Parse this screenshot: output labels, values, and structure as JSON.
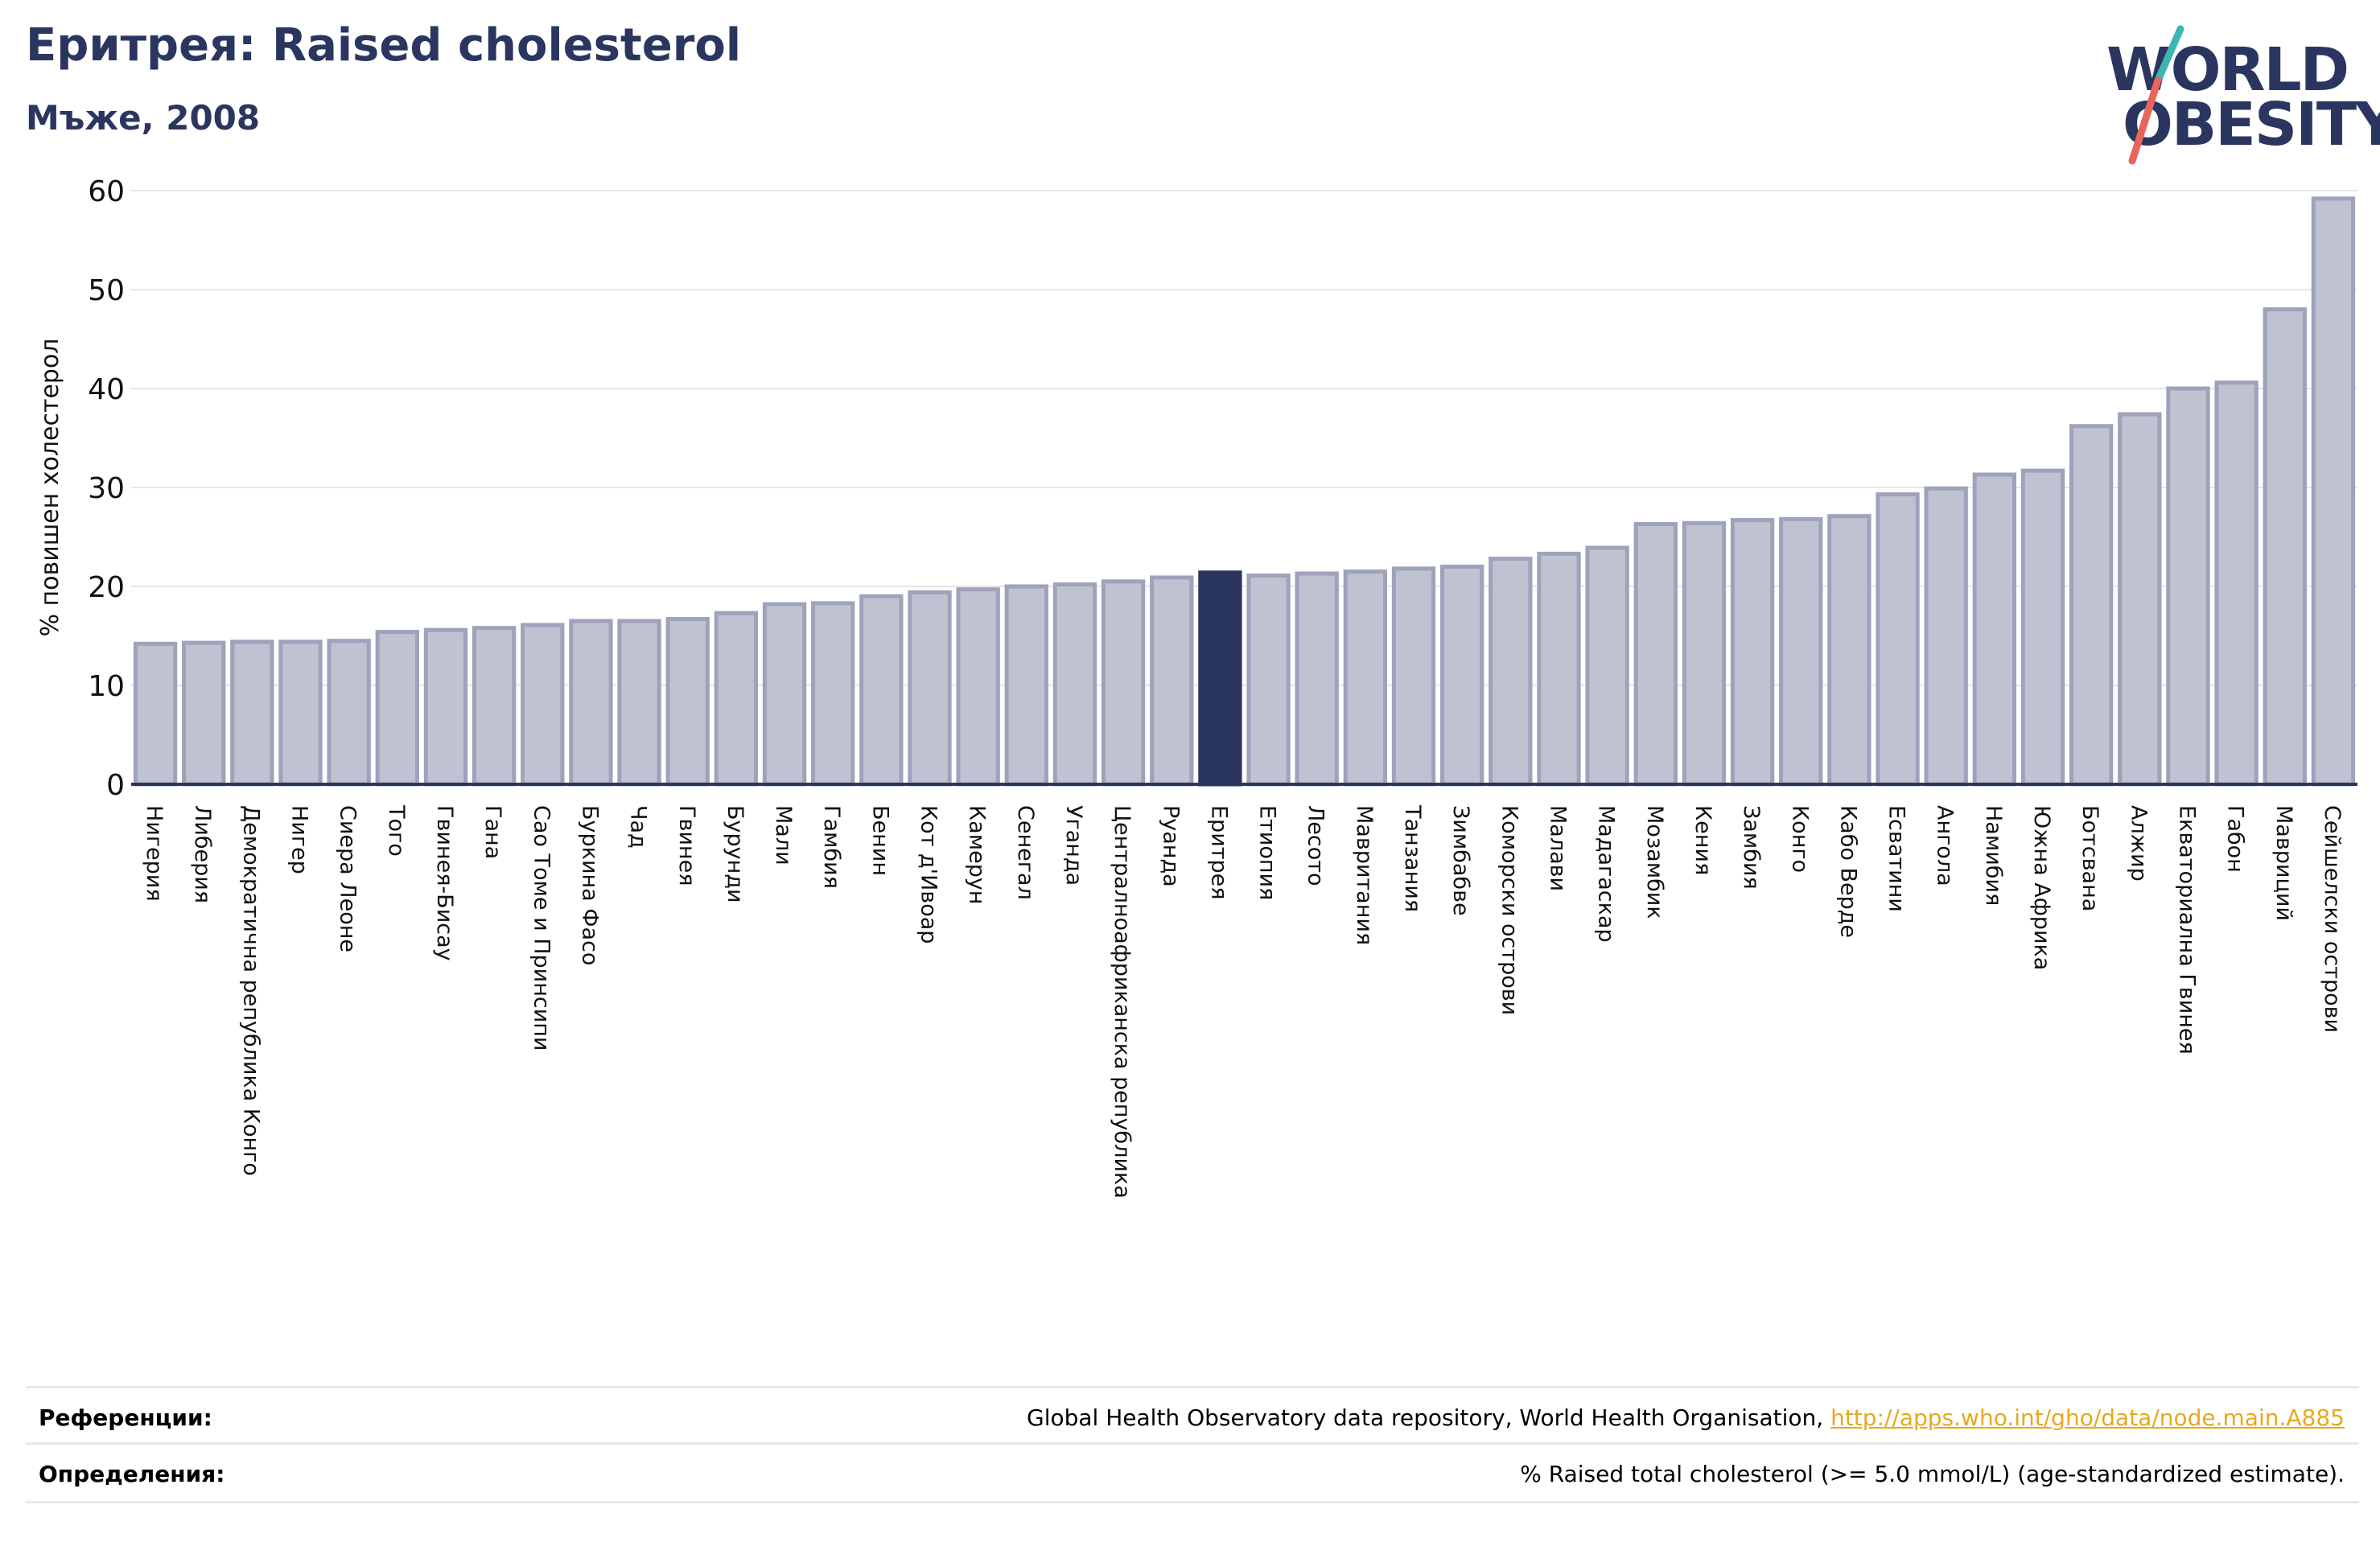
{
  "header": {
    "title": "Еритрея: Raised cholesterol",
    "subtitle": "Мъже, 2008"
  },
  "logo": {
    "line1": "WORLD",
    "line2": "OBESITY",
    "colors": {
      "text": "#2b3660",
      "slash_top": "#3bb6b0",
      "slash_bottom": "#e8655a"
    }
  },
  "colors": {
    "bar": "#bfc2d1",
    "bar_edge": "#9ea2ba",
    "highlight": "#2b3660",
    "grid": "#e6e6e6",
    "axis": "#2b3660"
  },
  "chart_data": {
    "type": "bar",
    "ylabel": "% повишен холестерол",
    "ylim": [
      0,
      60
    ],
    "yticks": [
      0,
      10,
      20,
      30,
      40,
      50,
      60
    ],
    "grid": true,
    "highlight": "Еритрея",
    "categories": [
      "Нигерия",
      "Либерия",
      "Демократична република Конго",
      "Нигер",
      "Сиера Леоне",
      "Того",
      "Гвинея-Бисау",
      "Гана",
      "Сао Томе и Принсипи",
      "Буркина Фасо",
      "Чад",
      "Гвинея",
      "Бурунди",
      "Мали",
      "Гамбия",
      "Бенин",
      "Кот д'Ивоар",
      "Камерун",
      "Сенегал",
      "Уганда",
      "Централноафриканска република",
      "Руанда",
      "Еритрея",
      "Етиопия",
      "Лесото",
      "Мавритания",
      "Танзания",
      "Зимбабве",
      "Коморски острови",
      "Малави",
      "Мадагаскар",
      "Мозамбик",
      "Кения",
      "Замбия",
      "Конго",
      "Кабо Верде",
      "Есватини",
      "Ангола",
      "Намибия",
      "Южна Африка",
      "Ботсвана",
      "Алжир",
      "Екваториална Гвинея",
      "Габон",
      "Мавриций",
      "Сейшелски острови"
    ],
    "values": [
      14.2,
      14.3,
      14.4,
      14.4,
      14.5,
      15.4,
      15.6,
      15.8,
      16.1,
      16.5,
      16.5,
      16.7,
      17.3,
      18.2,
      18.3,
      19.0,
      19.4,
      19.7,
      20.0,
      20.2,
      20.5,
      20.9,
      21.4,
      21.1,
      21.3,
      21.5,
      21.8,
      22.0,
      22.8,
      23.3,
      23.9,
      26.3,
      26.4,
      26.7,
      26.8,
      27.1,
      29.3,
      29.9,
      31.3,
      31.7,
      36.2,
      37.4,
      40.0,
      40.6,
      48.0,
      59.2
    ]
  },
  "footer": {
    "references_label": "Референции:",
    "references_text": "Global Health Observatory data repository, World Health Organisation, ",
    "references_link": "http://apps.who.int/gho/data/node.main.A885",
    "definitions_label": "Определения:",
    "definitions_text": "% Raised total cholesterol (>= 5.0 mmol/L) (age-standardized estimate)."
  }
}
